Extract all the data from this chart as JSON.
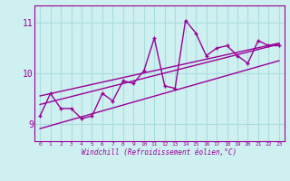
{
  "xlabel": "Windchill (Refroidissement éolien,°C)",
  "bg_color": "#cff0f0",
  "line_color": "#990099",
  "grid_color": "#aadddd",
  "x_ticks": [
    0,
    1,
    2,
    3,
    4,
    5,
    6,
    7,
    8,
    9,
    10,
    11,
    12,
    13,
    14,
    15,
    16,
    17,
    18,
    19,
    20,
    21,
    22,
    23
  ],
  "y_ticks": [
    9,
    10,
    11
  ],
  "ylim": [
    8.65,
    11.35
  ],
  "xlim": [
    -0.5,
    23.5
  ],
  "series1": [
    9.15,
    9.6,
    9.3,
    9.3,
    9.1,
    9.15,
    9.6,
    9.45,
    9.85,
    9.8,
    10.05,
    10.7,
    9.75,
    9.7,
    11.05,
    10.8,
    10.35,
    10.5,
    10.55,
    10.35,
    10.2,
    10.65,
    10.55,
    10.55
  ],
  "series2_x": [
    0,
    23
  ],
  "series2_y": [
    9.55,
    10.6
  ],
  "series3_x": [
    0,
    23
  ],
  "series3_y": [
    9.38,
    10.58
  ],
  "series4_x": [
    0,
    23
  ],
  "series4_y": [
    8.9,
    10.25
  ]
}
